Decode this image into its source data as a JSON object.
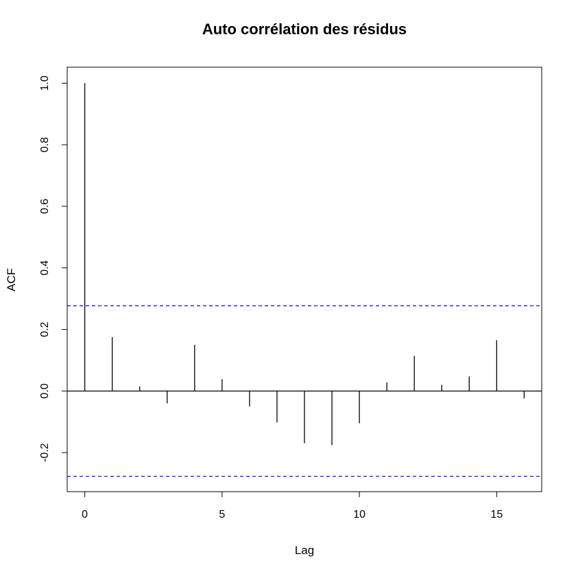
{
  "chart_data": {
    "type": "bar",
    "title": "Auto corrélation des résidus",
    "xlabel": "Lag",
    "ylabel": "ACF",
    "xlim": [
      -0.64,
      16.64
    ],
    "ylim": [
      -0.327,
      1.052
    ],
    "x_ticks": [
      0,
      5,
      10,
      15
    ],
    "y_ticks": [
      -0.2,
      0.0,
      0.2,
      0.4,
      0.6,
      0.8,
      1.0
    ],
    "x": [
      0,
      1,
      2,
      3,
      4,
      5,
      6,
      7,
      8,
      9,
      10,
      11,
      12,
      13,
      14,
      15,
      16
    ],
    "values": [
      1.0,
      0.175,
      0.015,
      -0.04,
      0.15,
      0.038,
      -0.05,
      -0.102,
      -0.17,
      -0.176,
      -0.105,
      0.028,
      0.114,
      0.02,
      0.047,
      0.165,
      -0.024
    ],
    "confidence_bounds": [
      0.277,
      -0.277
    ],
    "colors": {
      "bars": "#000000",
      "bounds": "#0000ff",
      "zero_line": "#000000"
    },
    "grid": false,
    "legend": "none"
  }
}
